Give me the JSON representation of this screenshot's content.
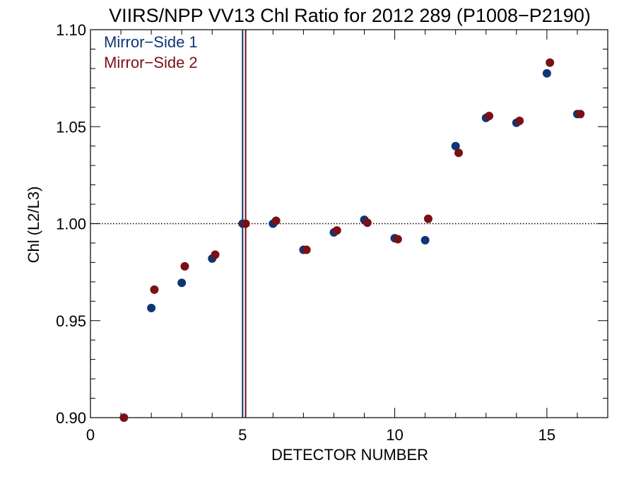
{
  "chart_data": {
    "type": "scatter",
    "title": "VIIRS/NPP VV13 Chl Ratio for 2012 289 (P1008−P2190)",
    "xlabel": "DETECTOR NUMBER",
    "ylabel": "Chl (L2/L3)",
    "xlim": [
      0,
      17
    ],
    "ylim": [
      0.9,
      1.1
    ],
    "xticks": [
      0,
      5,
      10,
      15
    ],
    "xtick_labels": [
      "0",
      "5",
      "10",
      "15"
    ],
    "yticks": [
      0.9,
      0.95,
      1.0,
      1.05,
      1.1
    ],
    "ytick_labels": [
      "0.90",
      "0.95",
      "1.00",
      "1.05",
      "1.10"
    ],
    "reference_line_y": 1.0,
    "legend_position": "top-left",
    "series": [
      {
        "name": "Mirror−Side 1",
        "color": "#0f3673",
        "vline_x": 5.0,
        "x": [
          2,
          3,
          4,
          5,
          6,
          7,
          8,
          9,
          10,
          11,
          12,
          13,
          14,
          15,
          16
        ],
        "y": [
          0.9565,
          0.9695,
          0.982,
          1.0,
          1.0,
          0.9865,
          0.9955,
          1.002,
          0.9925,
          0.9915,
          1.04,
          1.0545,
          1.052,
          1.0775,
          1.0565
        ]
      },
      {
        "name": "Mirror−Side 2",
        "color": "#7a1016",
        "vline_x": 5.1,
        "x": [
          1.1,
          2.1,
          3.1,
          4.1,
          5.1,
          6.1,
          7.1,
          8.1,
          9.1,
          10.1,
          11.1,
          12.1,
          13.1,
          14.1,
          15.1,
          16.1
        ],
        "y": [
          0.9,
          0.966,
          0.978,
          0.984,
          1.0,
          1.0015,
          0.9865,
          0.9965,
          1.0005,
          0.992,
          1.0025,
          1.0365,
          1.0555,
          1.053,
          1.083,
          1.0565
        ]
      }
    ]
  }
}
